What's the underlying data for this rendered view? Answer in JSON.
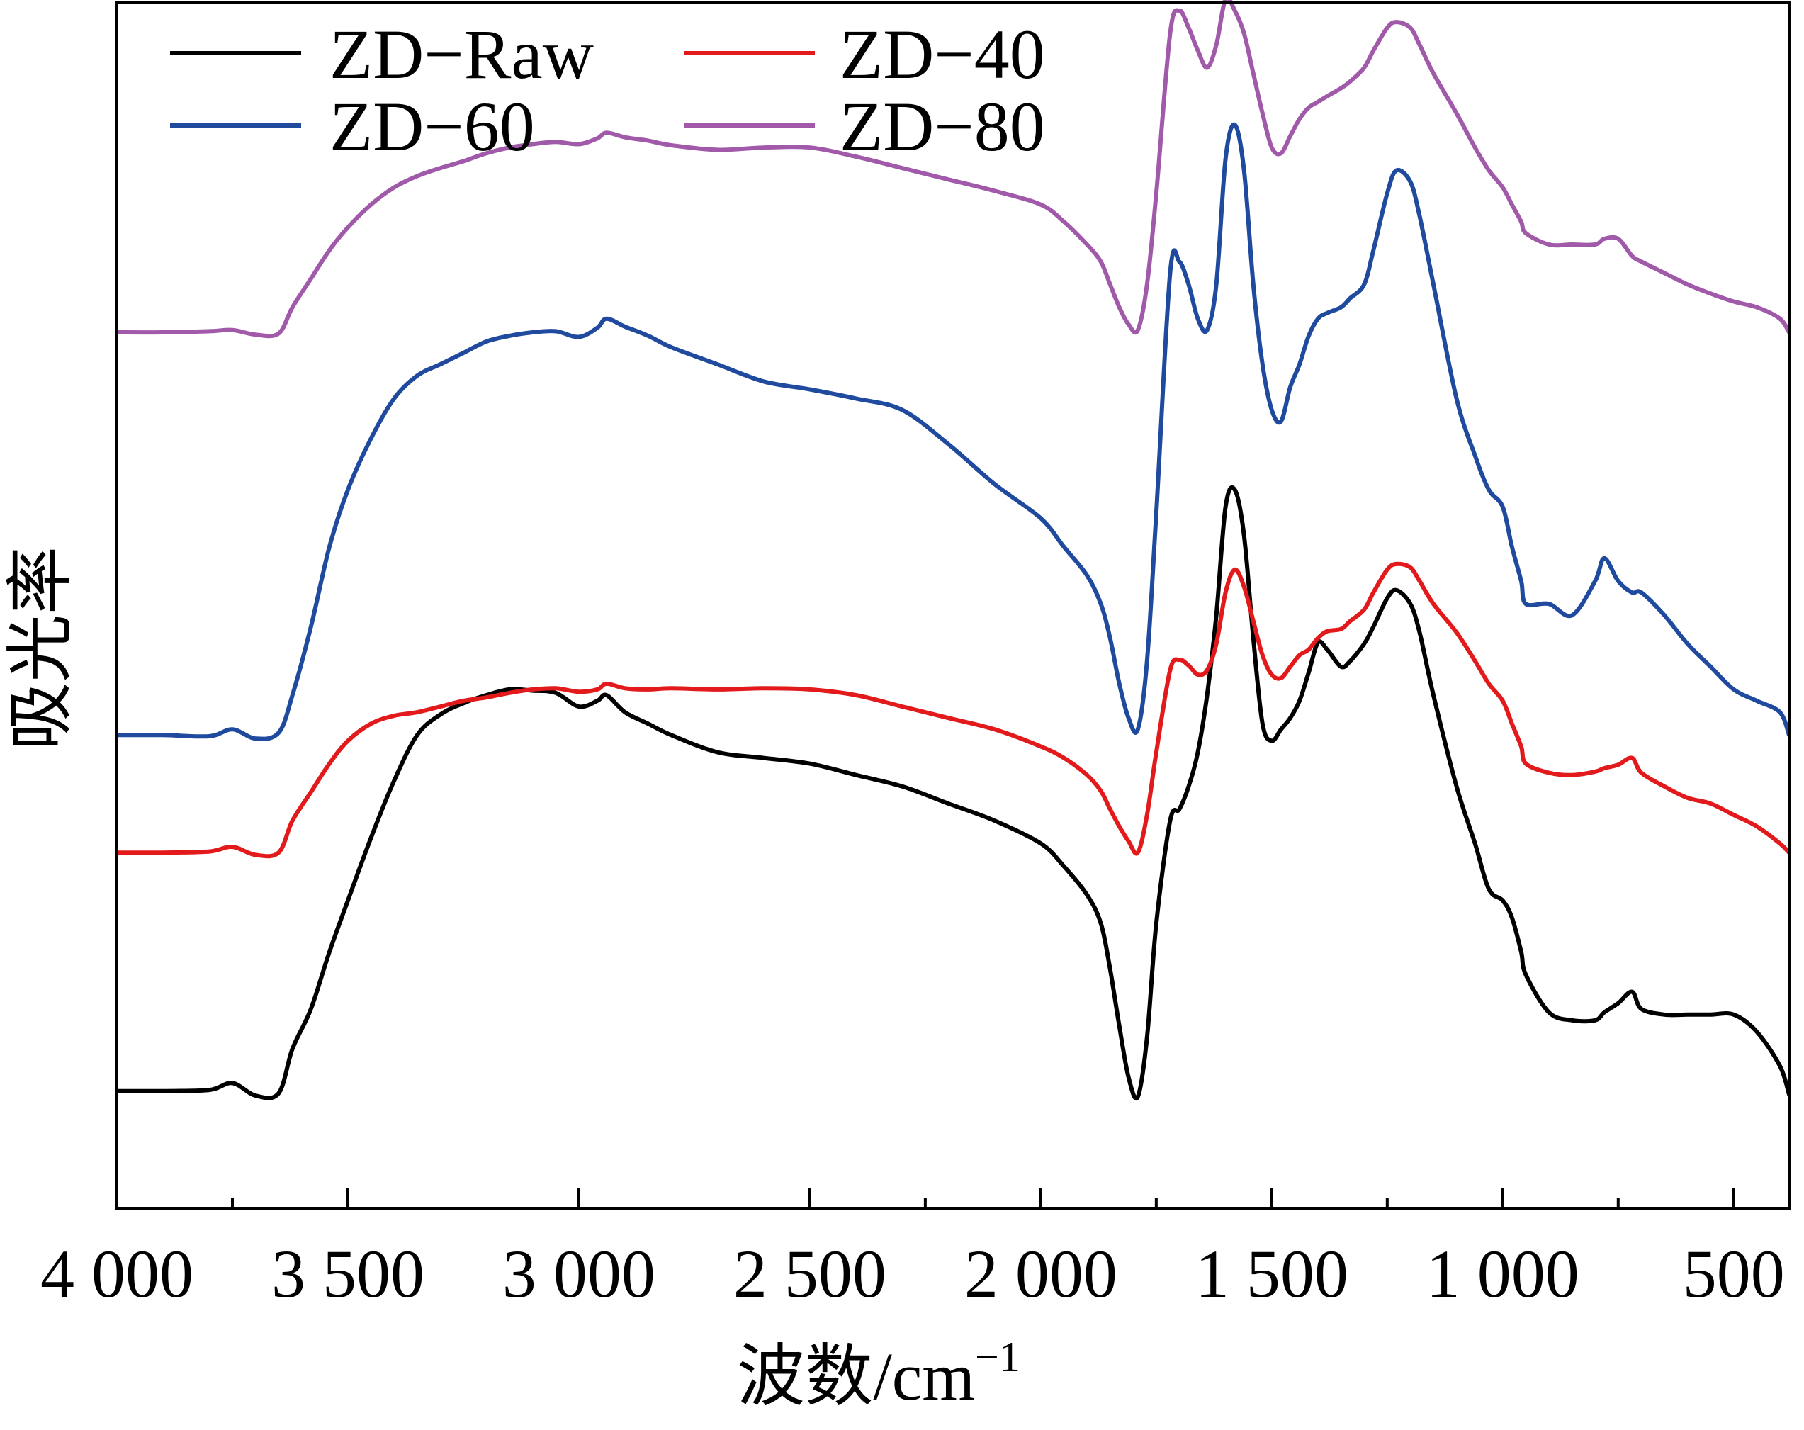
{
  "chart_data": {
    "type": "line",
    "title": "",
    "xlabel_main": "波数/cm",
    "xlabel_sup": "−1",
    "ylabel": "吸光率",
    "xlim": [
      4000,
      380
    ],
    "x_reversed": true,
    "yticks_shown": false,
    "grid": false,
    "legend_position": "top-left (two columns, no frame)",
    "xticks": [
      {
        "value": 4000,
        "label": "4 000"
      },
      {
        "value": 3500,
        "label": "3 500"
      },
      {
        "value": 3000,
        "label": "3 000"
      },
      {
        "value": 2500,
        "label": "2 500"
      },
      {
        "value": 2000,
        "label": "2 000"
      },
      {
        "value": 1500,
        "label": "1 500"
      },
      {
        "value": 1000,
        "label": "1 000"
      },
      {
        "value": 500,
        "label": "500"
      }
    ],
    "minor_xticks": [
      3750,
      2250,
      1750,
      1250,
      750
    ],
    "ylim": [
      0,
      1
    ],
    "series": [
      {
        "name": "ZD-Raw",
        "color": "#000000",
        "x": [
          4000,
          3900,
          3800,
          3750,
          3700,
          3650,
          3620,
          3580,
          3540,
          3500,
          3450,
          3400,
          3350,
          3300,
          3250,
          3200,
          3150,
          3100,
          3050,
          3000,
          2960,
          2940,
          2900,
          2850,
          2800,
          2700,
          2600,
          2500,
          2400,
          2300,
          2200,
          2100,
          2000,
          1950,
          1900,
          1870,
          1850,
          1830,
          1810,
          1790,
          1770,
          1750,
          1720,
          1700,
          1680,
          1660,
          1640,
          1620,
          1600,
          1580,
          1560,
          1540,
          1520,
          1500,
          1480,
          1460,
          1440,
          1420,
          1400,
          1380,
          1350,
          1330,
          1300,
          1280,
          1250,
          1230,
          1200,
          1180,
          1150,
          1100,
          1060,
          1030,
          1000,
          980,
          960,
          950,
          900,
          850,
          800,
          780,
          750,
          720,
          700,
          650,
          600,
          550,
          500,
          450,
          400,
          380
        ],
        "y": [
          0.053,
          0.053,
          0.054,
          0.06,
          0.049,
          0.051,
          0.09,
          0.125,
          0.175,
          0.22,
          0.275,
          0.325,
          0.365,
          0.383,
          0.393,
          0.4,
          0.405,
          0.404,
          0.402,
          0.39,
          0.395,
          0.4,
          0.385,
          0.375,
          0.365,
          0.35,
          0.345,
          0.34,
          0.33,
          0.32,
          0.305,
          0.29,
          0.27,
          0.25,
          0.225,
          0.2,
          0.16,
          0.11,
          0.065,
          0.048,
          0.1,
          0.2,
          0.29,
          0.3,
          0.32,
          0.35,
          0.4,
          0.47,
          0.565,
          0.58,
          0.54,
          0.45,
          0.375,
          0.36,
          0.37,
          0.38,
          0.395,
          0.42,
          0.446,
          0.44,
          0.425,
          0.43,
          0.445,
          0.46,
          0.485,
          0.492,
          0.48,
          0.455,
          0.4,
          0.32,
          0.27,
          0.23,
          0.22,
          0.205,
          0.175,
          0.155,
          0.122,
          0.115,
          0.115,
          0.122,
          0.13,
          0.14,
          0.125,
          0.12,
          0.12,
          0.12,
          0.12,
          0.105,
          0.075,
          0.05
        ]
      },
      {
        "name": "ZD-40",
        "color": "#e31a1c",
        "x": [
          4000,
          3900,
          3800,
          3750,
          3700,
          3650,
          3620,
          3580,
          3540,
          3500,
          3450,
          3400,
          3350,
          3300,
          3250,
          3200,
          3150,
          3100,
          3050,
          3000,
          2960,
          2940,
          2900,
          2850,
          2800,
          2700,
          2600,
          2500,
          2400,
          2300,
          2200,
          2100,
          2000,
          1950,
          1900,
          1870,
          1850,
          1830,
          1810,
          1790,
          1770,
          1750,
          1720,
          1700,
          1680,
          1660,
          1640,
          1620,
          1600,
          1580,
          1560,
          1540,
          1520,
          1500,
          1480,
          1460,
          1440,
          1420,
          1400,
          1380,
          1350,
          1330,
          1300,
          1280,
          1250,
          1230,
          1200,
          1180,
          1150,
          1100,
          1060,
          1030,
          1000,
          980,
          960,
          950,
          900,
          850,
          800,
          780,
          750,
          720,
          700,
          650,
          600,
          550,
          500,
          450,
          400,
          380
        ],
        "y": [
          0.262,
          0.262,
          0.263,
          0.267,
          0.26,
          0.262,
          0.29,
          0.315,
          0.34,
          0.36,
          0.375,
          0.382,
          0.385,
          0.39,
          0.395,
          0.398,
          0.402,
          0.405,
          0.406,
          0.403,
          0.405,
          0.41,
          0.406,
          0.405,
          0.406,
          0.405,
          0.406,
          0.405,
          0.4,
          0.39,
          0.38,
          0.37,
          0.355,
          0.345,
          0.33,
          0.316,
          0.3,
          0.285,
          0.272,
          0.262,
          0.295,
          0.35,
          0.422,
          0.431,
          0.426,
          0.418,
          0.422,
          0.445,
          0.49,
          0.51,
          0.495,
          0.465,
          0.435,
          0.418,
          0.415,
          0.425,
          0.435,
          0.44,
          0.45,
          0.456,
          0.458,
          0.465,
          0.475,
          0.49,
          0.51,
          0.515,
          0.512,
          0.5,
          0.48,
          0.455,
          0.43,
          0.41,
          0.395,
          0.375,
          0.355,
          0.34,
          0.332,
          0.33,
          0.333,
          0.336,
          0.339,
          0.345,
          0.332,
          0.32,
          0.31,
          0.305,
          0.295,
          0.285,
          0.27,
          0.262
        ]
      },
      {
        "name": "ZD-60",
        "color": "#1f4a9e",
        "x": [
          4000,
          3900,
          3800,
          3750,
          3700,
          3650,
          3620,
          3580,
          3540,
          3500,
          3450,
          3400,
          3350,
          3300,
          3250,
          3200,
          3150,
          3100,
          3050,
          3000,
          2960,
          2940,
          2900,
          2850,
          2800,
          2700,
          2600,
          2500,
          2400,
          2300,
          2200,
          2100,
          2000,
          1950,
          1900,
          1870,
          1850,
          1830,
          1810,
          1790,
          1770,
          1750,
          1720,
          1700,
          1680,
          1660,
          1640,
          1620,
          1600,
          1580,
          1560,
          1540,
          1520,
          1500,
          1480,
          1460,
          1440,
          1420,
          1400,
          1380,
          1350,
          1330,
          1300,
          1280,
          1250,
          1230,
          1200,
          1180,
          1150,
          1100,
          1060,
          1030,
          1000,
          980,
          960,
          950,
          900,
          850,
          800,
          780,
          750,
          720,
          700,
          650,
          600,
          550,
          500,
          450,
          400,
          380
        ],
        "y": [
          0.365,
          0.365,
          0.364,
          0.37,
          0.362,
          0.367,
          0.4,
          0.46,
          0.53,
          0.58,
          0.625,
          0.66,
          0.68,
          0.69,
          0.7,
          0.71,
          0.715,
          0.718,
          0.719,
          0.714,
          0.722,
          0.73,
          0.723,
          0.715,
          0.705,
          0.69,
          0.675,
          0.668,
          0.66,
          0.65,
          0.62,
          0.585,
          0.555,
          0.53,
          0.505,
          0.48,
          0.45,
          0.41,
          0.38,
          0.37,
          0.43,
          0.56,
          0.77,
          0.78,
          0.76,
          0.73,
          0.72,
          0.76,
          0.87,
          0.9,
          0.86,
          0.76,
          0.69,
          0.65,
          0.64,
          0.67,
          0.69,
          0.715,
          0.73,
          0.735,
          0.74,
          0.748,
          0.76,
          0.79,
          0.84,
          0.86,
          0.85,
          0.82,
          0.76,
          0.66,
          0.61,
          0.58,
          0.565,
          0.53,
          0.5,
          0.48,
          0.48,
          0.47,
          0.5,
          0.52,
          0.5,
          0.49,
          0.49,
          0.47,
          0.445,
          0.425,
          0.405,
          0.395,
          0.385,
          0.365
        ]
      },
      {
        "name": "ZD-80",
        "color": "#a05aa9",
        "x": [
          4000,
          3900,
          3800,
          3750,
          3700,
          3650,
          3620,
          3580,
          3540,
          3500,
          3450,
          3400,
          3350,
          3300,
          3250,
          3200,
          3150,
          3100,
          3050,
          3000,
          2960,
          2940,
          2900,
          2850,
          2800,
          2700,
          2600,
          2500,
          2400,
          2300,
          2200,
          2100,
          2000,
          1950,
          1900,
          1870,
          1850,
          1830,
          1810,
          1790,
          1770,
          1750,
          1720,
          1700,
          1680,
          1660,
          1640,
          1620,
          1600,
          1580,
          1560,
          1540,
          1520,
          1500,
          1480,
          1460,
          1440,
          1420,
          1400,
          1380,
          1350,
          1330,
          1300,
          1280,
          1250,
          1230,
          1200,
          1180,
          1150,
          1100,
          1060,
          1030,
          1000,
          980,
          960,
          950,
          900,
          850,
          800,
          780,
          750,
          720,
          700,
          650,
          600,
          550,
          500,
          450,
          400,
          380
        ],
        "y": [
          0.718,
          0.718,
          0.719,
          0.72,
          0.716,
          0.717,
          0.74,
          0.765,
          0.79,
          0.81,
          0.83,
          0.845,
          0.855,
          0.862,
          0.868,
          0.875,
          0.88,
          0.883,
          0.885,
          0.883,
          0.888,
          0.893,
          0.889,
          0.886,
          0.882,
          0.878,
          0.88,
          0.88,
          0.872,
          0.862,
          0.852,
          0.842,
          0.83,
          0.815,
          0.795,
          0.78,
          0.76,
          0.74,
          0.725,
          0.72,
          0.76,
          0.84,
          0.98,
          1.0,
          0.985,
          0.965,
          0.95,
          0.97,
          1.01,
          1.0,
          0.98,
          0.945,
          0.91,
          0.88,
          0.875,
          0.89,
          0.905,
          0.915,
          0.92,
          0.925,
          0.932,
          0.938,
          0.95,
          0.965,
          0.985,
          0.99,
          0.985,
          0.97,
          0.945,
          0.91,
          0.88,
          0.86,
          0.845,
          0.83,
          0.815,
          0.805,
          0.795,
          0.795,
          0.795,
          0.8,
          0.8,
          0.785,
          0.78,
          0.77,
          0.76,
          0.752,
          0.745,
          0.74,
          0.73,
          0.718
        ]
      }
    ]
  }
}
